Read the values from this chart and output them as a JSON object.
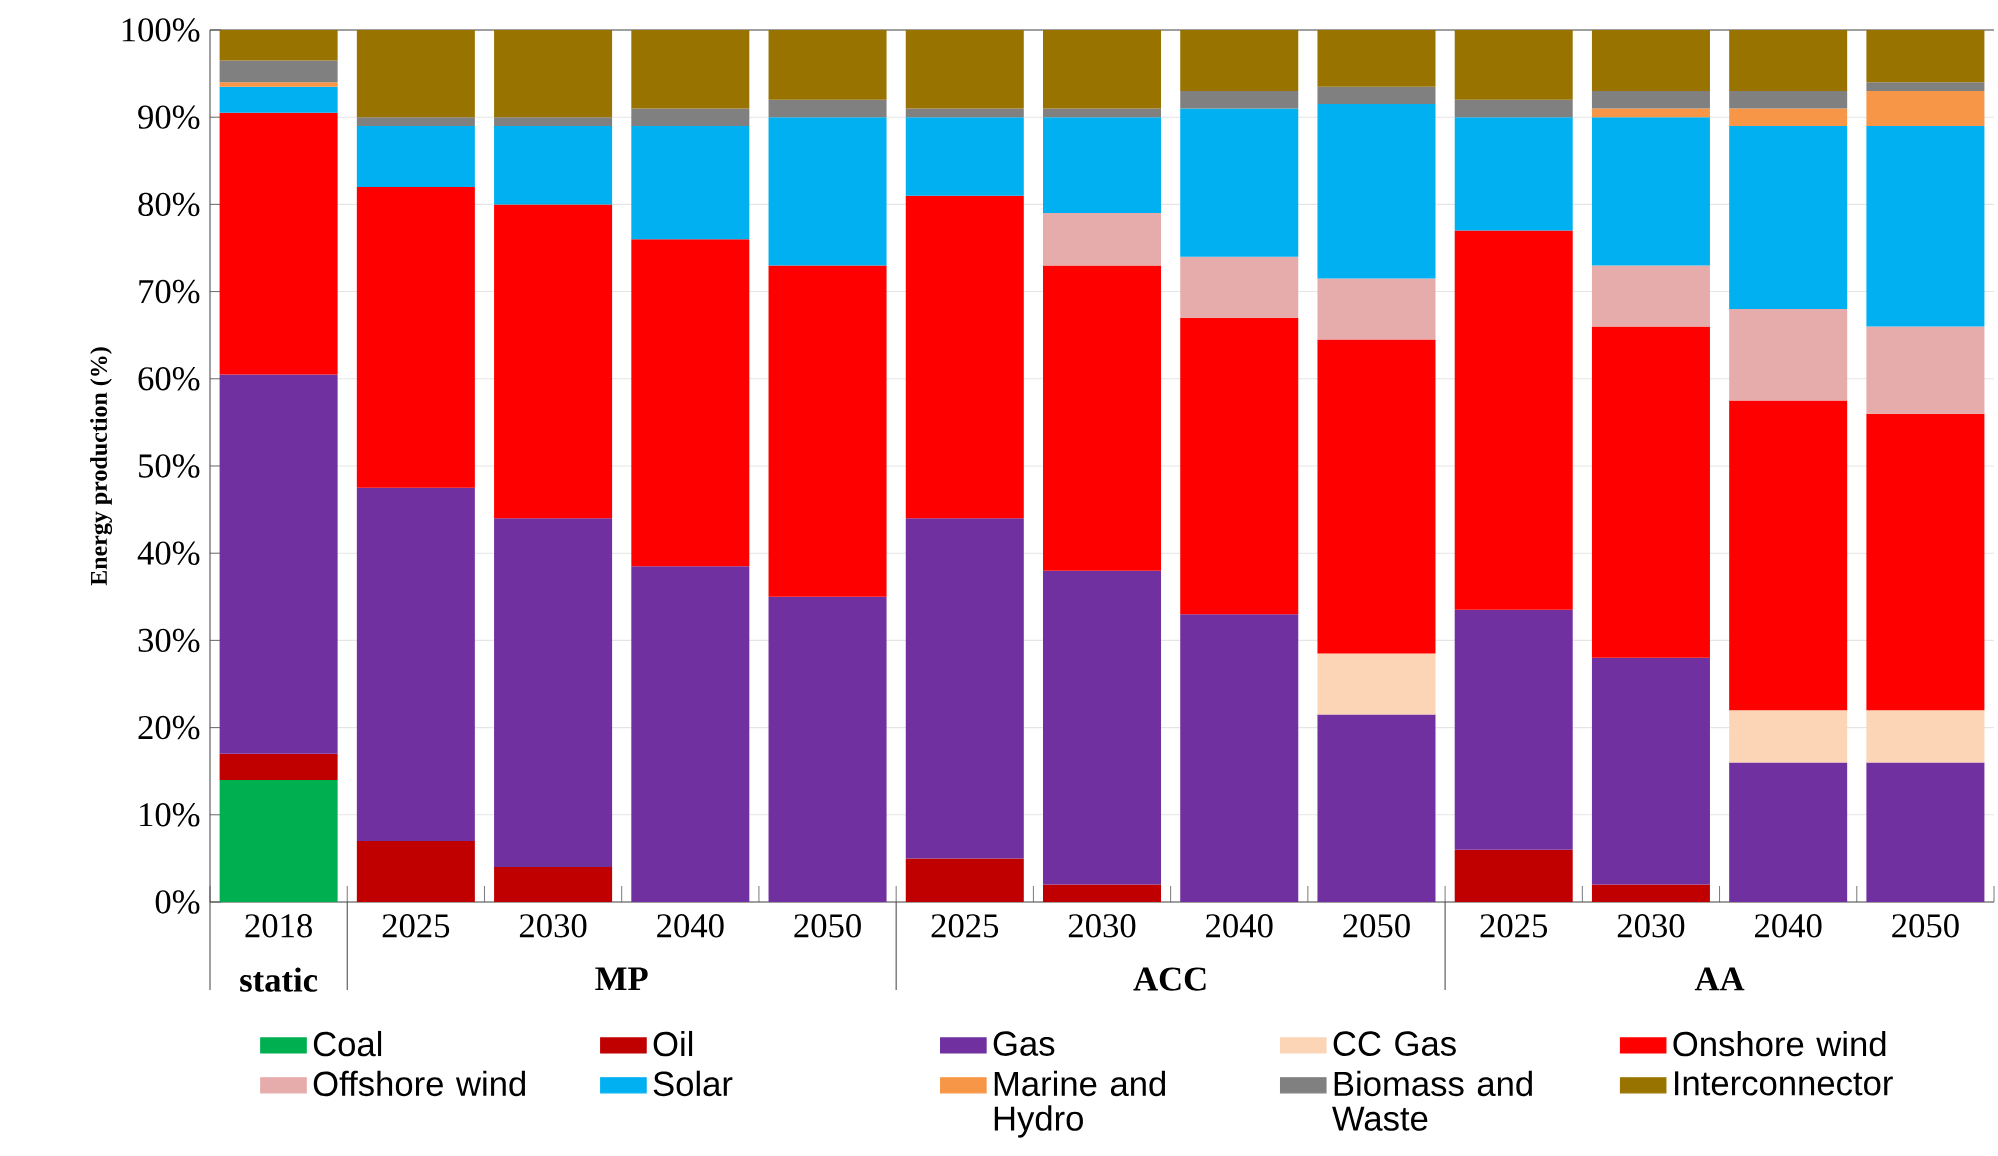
{
  "chart_data": {
    "type": "bar",
    "stacked": true,
    "ylabel": "Energy production (%)",
    "categories": [
      "2018",
      "2025",
      "2030",
      "2040",
      "2050",
      "2025",
      "2030",
      "2040",
      "2050",
      "2025",
      "2030",
      "2040",
      "2050"
    ],
    "annotations": [
      "static",
      "MP",
      "ACC",
      "AA"
    ],
    "series": [
      {
        "name": "Coal",
        "color": "#00b050",
        "values": [
          14,
          0,
          0,
          0,
          0,
          0,
          0,
          0,
          0,
          0,
          0,
          0,
          0
        ]
      },
      {
        "name": "Oil",
        "color": "#c00000",
        "values": [
          3,
          7,
          4,
          0,
          0,
          5,
          2,
          0,
          0,
          6,
          2,
          0,
          0
        ]
      },
      {
        "name": "Gas",
        "color": "#7030a0",
        "values": [
          43.5,
          40.5,
          40,
          38.5,
          35,
          39,
          36,
          33,
          21.5,
          27.5,
          26,
          16,
          16
        ]
      },
      {
        "name": "CC Gas",
        "color": "#fbd5b5",
        "values": [
          0,
          0,
          0,
          0,
          0,
          0,
          0,
          0,
          7,
          0,
          0,
          6,
          6
        ]
      },
      {
        "name": "Onshore wind",
        "color": "#ff0000",
        "values": [
          30,
          34.5,
          36,
          37.5,
          38,
          37,
          35,
          34,
          36,
          43.5,
          38,
          35.5,
          34
        ]
      },
      {
        "name": "Offshore wind",
        "color": "#e6acac",
        "values": [
          0,
          0,
          0,
          0,
          0,
          0,
          6,
          7,
          7,
          0,
          7,
          10.5,
          10
        ]
      },
      {
        "name": "Solar",
        "color": "#00b0f0",
        "values": [
          3,
          7,
          9,
          13,
          17,
          9,
          11,
          17,
          20,
          13,
          17,
          21,
          23
        ]
      },
      {
        "name": "Marine and Hydro",
        "color": "#f79646",
        "values": [
          0.5,
          0,
          0,
          0,
          0,
          0,
          0,
          0,
          0,
          0,
          1,
          2,
          4
        ]
      },
      {
        "name": "Biomass and Waste",
        "color": "#808080",
        "values": [
          2.5,
          1,
          1,
          2,
          2,
          1,
          1,
          2,
          2,
          2,
          2,
          2,
          1
        ]
      },
      {
        "name": "Interconnector",
        "color": "#997300",
        "values": [
          3.5,
          10,
          10,
          9,
          8,
          9,
          9,
          7,
          6.5,
          8,
          7,
          7,
          6
        ]
      }
    ],
    "ylim": [
      0,
      100
    ],
    "yticks": [
      {
        "value": 0,
        "label": "0%"
      },
      {
        "value": 10,
        "label": "10%"
      },
      {
        "value": 20,
        "label": "20%"
      },
      {
        "value": 30,
        "label": "30%"
      },
      {
        "value": 40,
        "label": "40%"
      },
      {
        "value": 50,
        "label": "50%"
      },
      {
        "value": 60,
        "label": "60%"
      },
      {
        "value": 70,
        "label": "70%"
      },
      {
        "value": 80,
        "label": "80%"
      },
      {
        "value": 90,
        "label": "90%"
      },
      {
        "value": 100,
        "label": "100%"
      }
    ],
    "grid": "y",
    "legend": "bottom"
  }
}
